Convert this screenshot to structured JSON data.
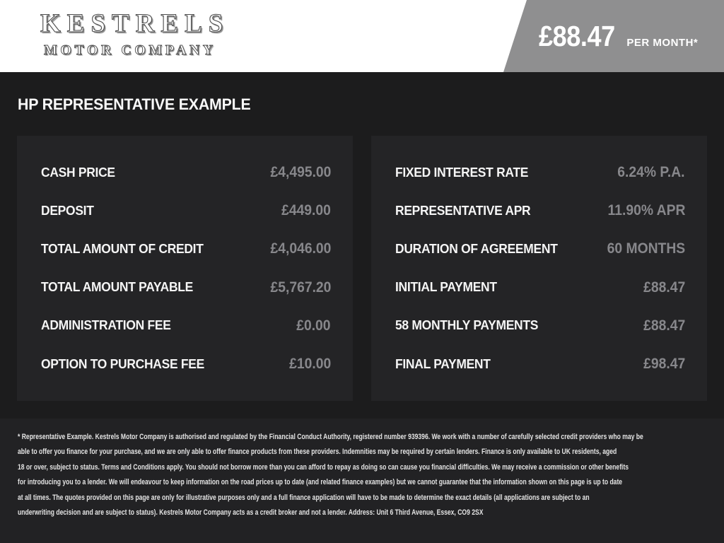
{
  "header": {
    "logo": {
      "line1": "KESTRELS",
      "line2": "MOTOR COMPANY"
    },
    "price": {
      "amount": "£88.47",
      "suffix": "PER MONTH*"
    }
  },
  "page": {
    "heading": "HP REPRESENTATIVE EXAMPLE"
  },
  "finance": {
    "left": {
      "rows": [
        {
          "label": "CASH PRICE",
          "value": "£4,495.00"
        },
        {
          "label": "DEPOSIT",
          "value": "£449.00"
        },
        {
          "label": "TOTAL AMOUNT OF CREDIT",
          "value": "£4,046.00"
        },
        {
          "label": "TOTAL AMOUNT PAYABLE",
          "value": "£5,767.20"
        },
        {
          "label": "ADMINISTRATION FEE",
          "value": "£0.00"
        },
        {
          "label": "OPTION TO PURCHASE FEE",
          "value": "£10.00"
        }
      ]
    },
    "right": {
      "rows": [
        {
          "label": "FIXED INTEREST RATE",
          "value": "6.24% P.A."
        },
        {
          "label": "REPRESENTATIVE APR",
          "value": "11.90% APR"
        },
        {
          "label": "DURATION OF AGREEMENT",
          "value": "60 MONTHS"
        },
        {
          "label": "INITIAL PAYMENT",
          "value": "£88.47"
        },
        {
          "label": "58 MONTHLY PAYMENTS",
          "value": "£88.47"
        },
        {
          "label": "FINAL PAYMENT",
          "value": "£98.47"
        }
      ]
    }
  },
  "disclaimer": {
    "lines": [
      "* Representative Example. Kestrels Motor Company is authorised and regulated by the Financial Conduct Authority, registered number 939396. We work with a number of carefully selected credit providers who may be",
      "able to offer you finance for your purchase, and we are only able to offer finance products from these providers. Indemnities may be required by certain lenders. Finance is only available to UK residents, aged",
      "18 or over, subject to status. Terms and Conditions apply. You should not borrow more than you can afford to repay as doing so can cause you financial difficulties. We may receive a commission or other benefits",
      "for introducing you to a lender. We will endeavour to keep information on the road prices up to date (and related finance examples) but we cannot guarantee that the information shown on this page is up to date",
      "at all times. The quotes provided on this page are only for illustrative purposes only and a full finance application will have to be made to determine the exact details (all applications are subject to an",
      "underwriting decision and are subject to status). Kestrels Motor Company acts as a credit broker and not a lender. Address: Unit 6 Third Avenue, Essex, CO9 2SX"
    ]
  },
  "colors": {
    "header_background": "#ffffff",
    "price_flag_gray": "#8f8f90",
    "page_background": "#1c1c1d",
    "panel_background": "#242426",
    "footer_background": "#222224",
    "label_white": "#f5f5f5",
    "value_gray": "#87878b"
  }
}
